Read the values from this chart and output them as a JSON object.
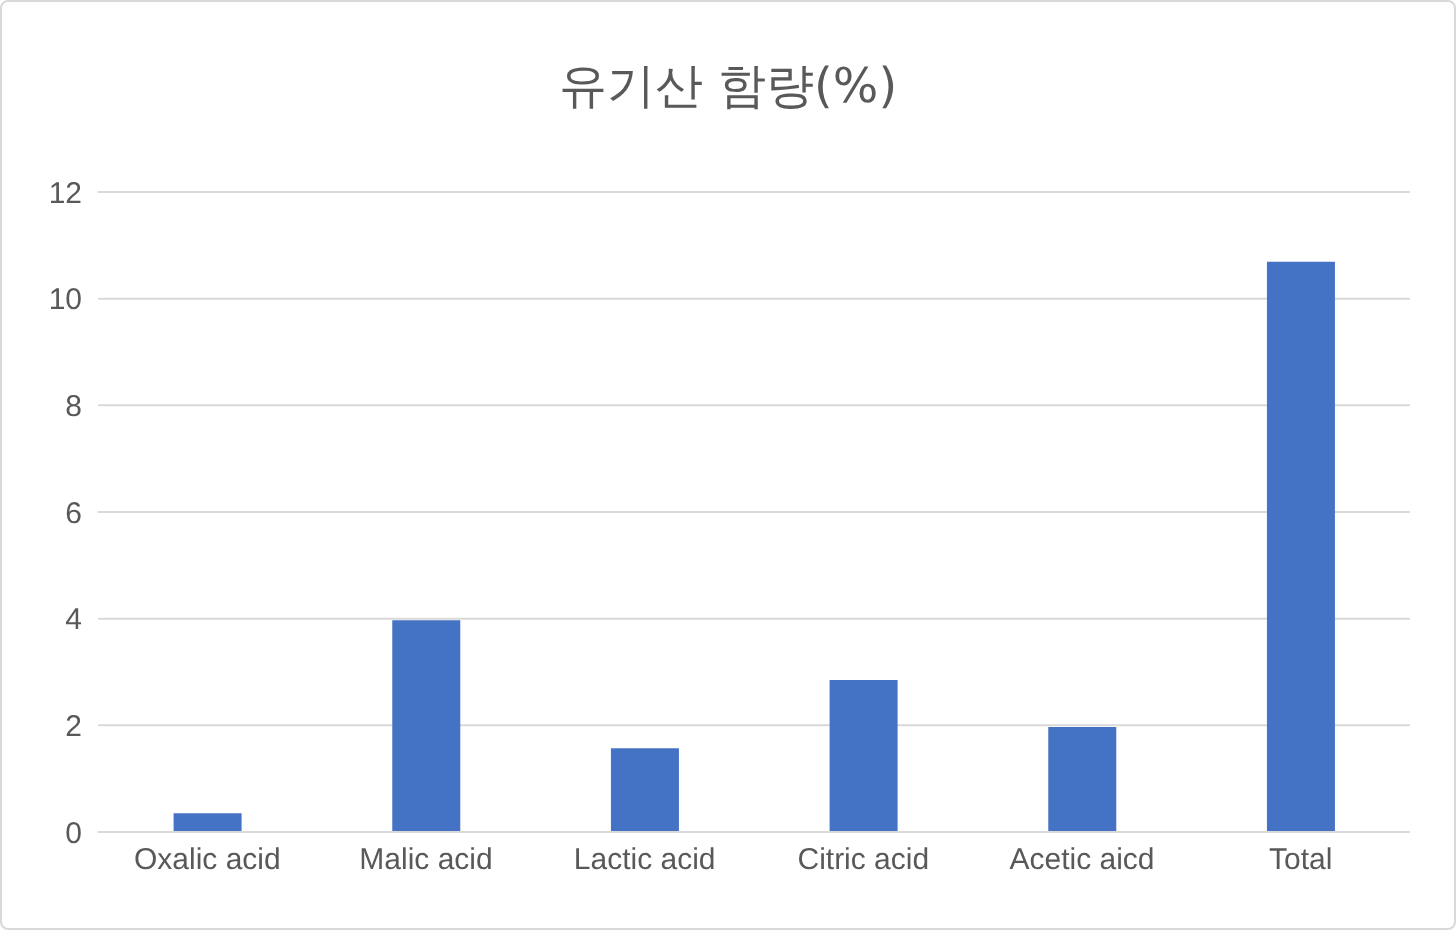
{
  "chart_data": {
    "type": "bar",
    "title": "유기산 함량(%)",
    "categories": [
      "Oxalic acid",
      "Malic acid",
      "Lactic acid",
      "Citric acid",
      "Acetic aicd",
      "Total"
    ],
    "values": [
      0.35,
      3.97,
      1.57,
      2.85,
      1.97,
      10.69
    ],
    "color": "#4472c4",
    "ylim": [
      0,
      12
    ],
    "yticks": [
      0,
      2,
      4,
      6,
      8,
      10,
      12
    ],
    "grid": "y"
  }
}
